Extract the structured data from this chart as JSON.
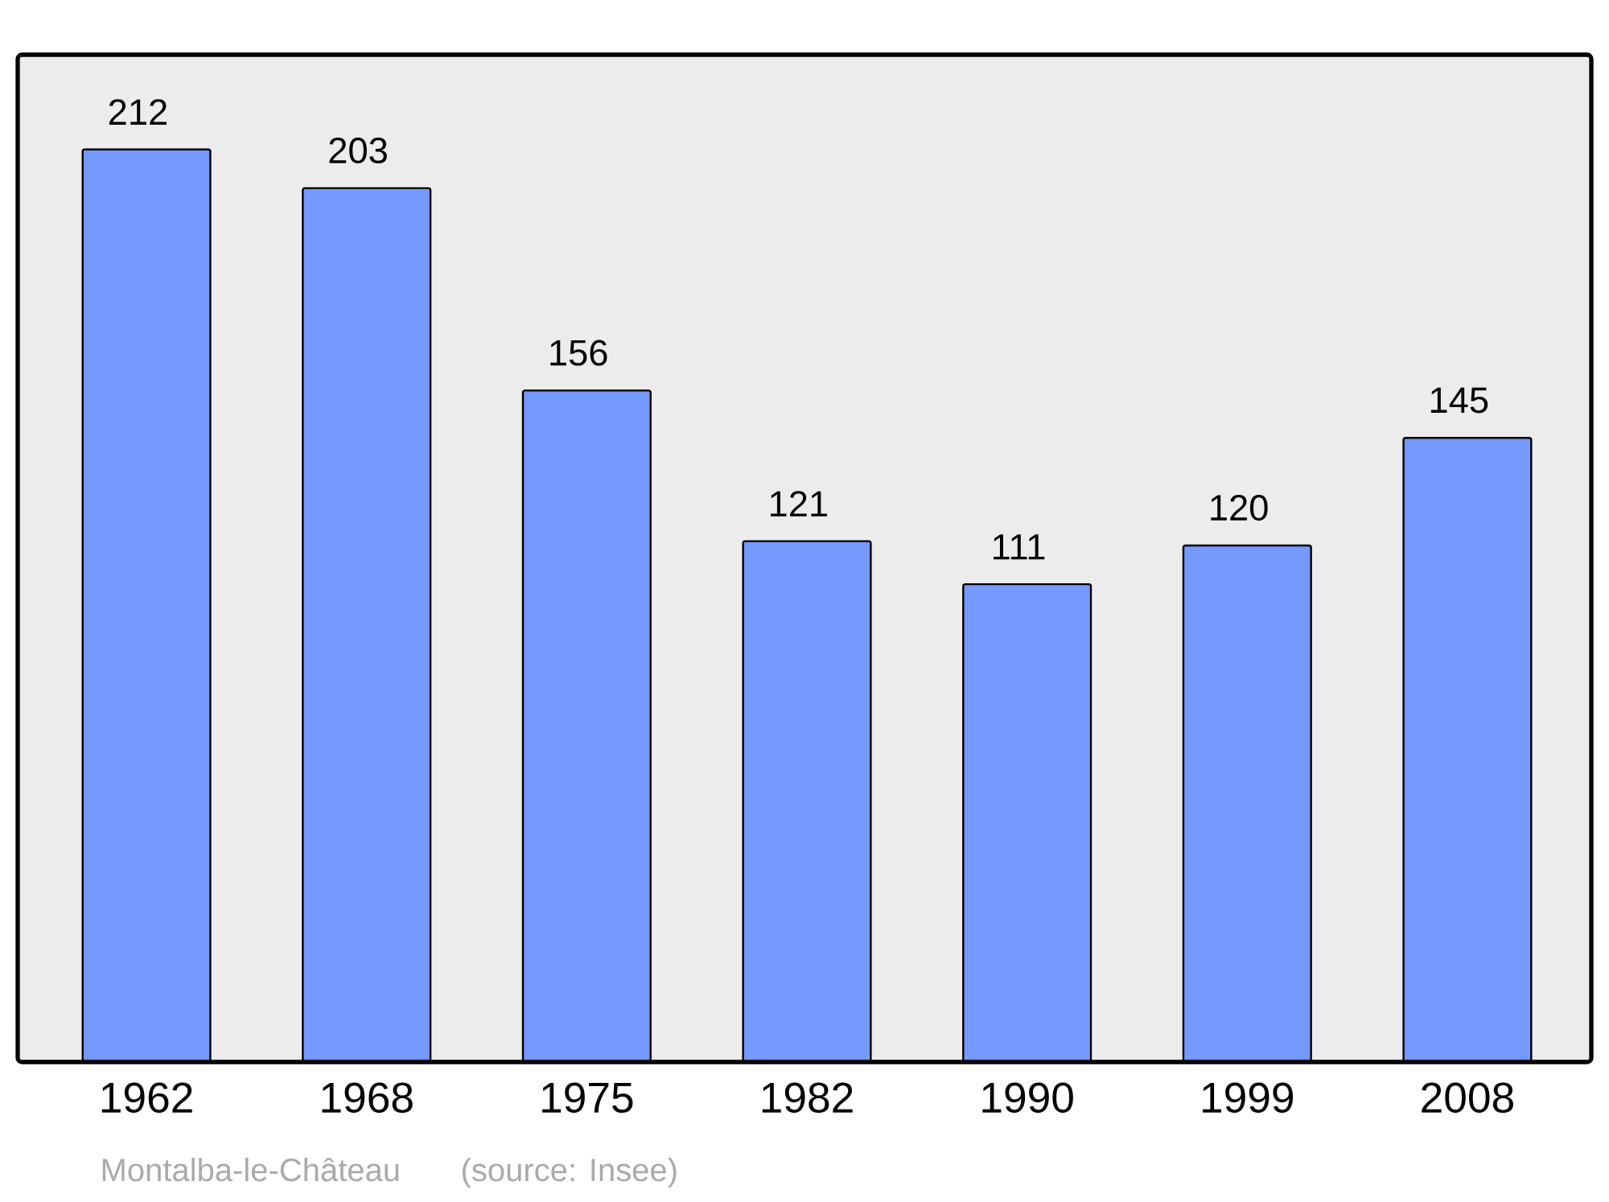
{
  "chart_data": {
    "type": "bar",
    "categories": [
      "1962",
      "1968",
      "1975",
      "1982",
      "1990",
      "1999",
      "2008"
    ],
    "values": [
      212,
      203,
      156,
      121,
      111,
      120,
      145
    ],
    "color": "#7499ff",
    "ylim": [
      0,
      234
    ],
    "data_labels": true,
    "tick_labels": "x",
    "annotations": [
      "Montalba-le-Château",
      "(source: Insee)"
    ]
  }
}
